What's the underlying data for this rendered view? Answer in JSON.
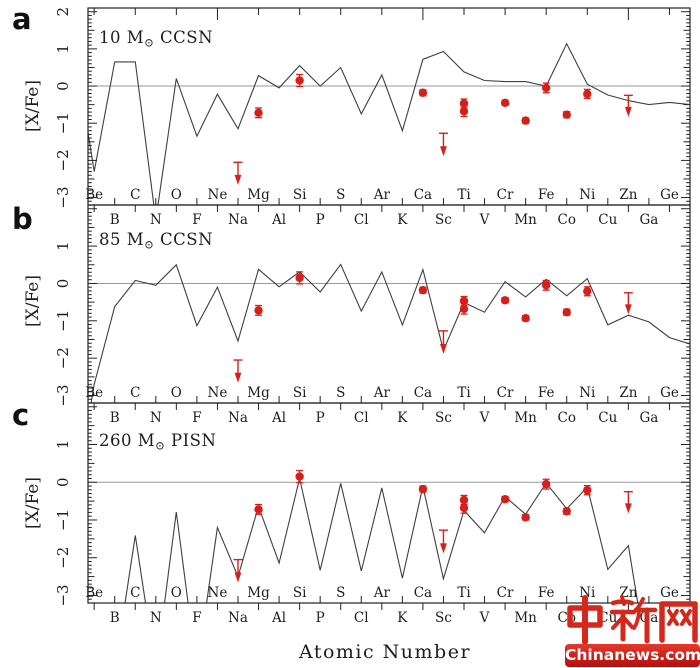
{
  "watermark": {
    "logo_text": "中新网",
    "site_text": "Chinanews.com",
    "logo_color": "#d5281c"
  },
  "chart_data": {
    "type": "line",
    "x": {
      "label": "Atomic Number",
      "z_start": 4,
      "elements": [
        "Be",
        "B",
        "C",
        "N",
        "O",
        "F",
        "Ne",
        "Na",
        "Mg",
        "Al",
        "Si",
        "P",
        "S",
        "Cl",
        "Ar",
        "K",
        "Ca",
        "Sc",
        "Ti",
        "V",
        "Cr",
        "Mn",
        "Fe",
        "Co",
        "Ni",
        "Cu",
        "Zn",
        "Ga",
        "Ge"
      ],
      "xlim": [
        3.7,
        33.0
      ]
    },
    "y": {
      "label": "[X/Fe]",
      "ylim": [
        -3.2,
        2.1
      ],
      "ticks": [
        2,
        1,
        0,
        -1,
        -2,
        -3
      ]
    },
    "colors": {
      "model_line": "#3f3f3f",
      "zero_line": "#9a9a9a",
      "data": "#d71f1a",
      "frame": "#222222"
    },
    "panels": [
      {
        "label": "a",
        "title": "10 M⊙ CCSN",
        "title_parts": {
          "pre": "10 M",
          "sub": "⊙",
          "post": " CCSN"
        },
        "model": [
          [
            3.7,
            -1.25
          ],
          [
            4,
            -2.3
          ],
          [
            5,
            0.65
          ],
          [
            6,
            0.65
          ],
          [
            7,
            -3.6
          ],
          [
            8,
            0.2
          ],
          [
            9,
            -1.35
          ],
          [
            10,
            -0.22
          ],
          [
            11,
            -1.15
          ],
          [
            12,
            0.28
          ],
          [
            13,
            -0.05
          ],
          [
            14,
            0.55
          ],
          [
            15,
            0.0
          ],
          [
            16,
            0.5
          ],
          [
            17,
            -0.75
          ],
          [
            18,
            0.3
          ],
          [
            19,
            -1.2
          ],
          [
            20,
            0.72
          ],
          [
            21,
            0.93
          ],
          [
            22,
            0.38
          ],
          [
            23,
            0.15
          ],
          [
            24,
            0.12
          ],
          [
            25,
            0.12
          ],
          [
            26,
            0.0
          ],
          [
            27,
            1.14
          ],
          [
            28,
            0.05
          ],
          [
            29,
            -0.24
          ],
          [
            30,
            -0.39
          ],
          [
            31,
            -0.5
          ],
          [
            32,
            -0.44
          ],
          [
            33,
            -0.5
          ]
        ]
      },
      {
        "label": "b",
        "title": "85 M⊙ CCSN",
        "title_parts": {
          "pre": "85 M",
          "sub": "⊙",
          "post": " CCSN"
        },
        "model": [
          [
            3.7,
            -3.7
          ],
          [
            4,
            -2.7
          ],
          [
            5,
            -0.62
          ],
          [
            6,
            0.08
          ],
          [
            7,
            -0.05
          ],
          [
            8,
            0.5
          ],
          [
            9,
            -1.13
          ],
          [
            10,
            -0.1
          ],
          [
            11,
            -1.54
          ],
          [
            12,
            0.38
          ],
          [
            13,
            -0.09
          ],
          [
            14,
            0.31
          ],
          [
            15,
            -0.23
          ],
          [
            16,
            0.51
          ],
          [
            17,
            -0.74
          ],
          [
            18,
            0.31
          ],
          [
            19,
            -1.11
          ],
          [
            20,
            0.37
          ],
          [
            21,
            -1.79
          ],
          [
            22,
            -0.51
          ],
          [
            23,
            -0.77
          ],
          [
            24,
            0.05
          ],
          [
            25,
            -0.36
          ],
          [
            26,
            0.11
          ],
          [
            27,
            -0.33
          ],
          [
            28,
            0.13
          ],
          [
            29,
            -1.11
          ],
          [
            30,
            -0.85
          ],
          [
            31,
            -1.03
          ],
          [
            32,
            -1.45
          ],
          [
            33,
            -1.62
          ]
        ]
      },
      {
        "label": "c",
        "title": "260 M⊙ PISN",
        "title_parts": {
          "pre": "260 M",
          "sub": "⊙",
          "post": " PISN"
        },
        "model": [
          [
            3.7,
            -5
          ],
          [
            4,
            -5
          ],
          [
            5,
            -5
          ],
          [
            6,
            -1.41
          ],
          [
            7,
            -5
          ],
          [
            8,
            -0.79
          ],
          [
            9,
            -5
          ],
          [
            10,
            -1.2
          ],
          [
            11,
            -2.5
          ],
          [
            12,
            -0.64
          ],
          [
            13,
            -2.14
          ],
          [
            14,
            0.1
          ],
          [
            15,
            -2.33
          ],
          [
            16,
            -0.03
          ],
          [
            17,
            -2.35
          ],
          [
            18,
            -0.15
          ],
          [
            19,
            -2.54
          ],
          [
            20,
            -0.11
          ],
          [
            21,
            -2.56
          ],
          [
            22,
            -0.75
          ],
          [
            23,
            -1.34
          ],
          [
            24,
            -0.38
          ],
          [
            25,
            -0.85
          ],
          [
            26,
            -0.02
          ],
          [
            27,
            -0.7
          ],
          [
            28,
            -0.13
          ],
          [
            29,
            -2.31
          ],
          [
            30,
            -1.68
          ],
          [
            31,
            -5
          ],
          [
            32,
            -5
          ]
        ]
      }
    ],
    "observations": {
      "points": [
        {
          "element": "Mg",
          "z": 12,
          "value": -0.72,
          "err": 0.13
        },
        {
          "element": "Si",
          "z": 14,
          "value": 0.15,
          "err": 0.16
        },
        {
          "element": "Ca",
          "z": 20,
          "value": -0.18,
          "err": 0.08
        },
        {
          "element": "Ti",
          "z": 22,
          "value": -0.47,
          "err": 0.12
        },
        {
          "element": "Ti",
          "z": 22,
          "value": -0.68,
          "err": 0.14
        },
        {
          "element": "Cr",
          "z": 24,
          "value": -0.45,
          "err": 0.07
        },
        {
          "element": "Mn",
          "z": 25,
          "value": -0.93,
          "err": 0.07
        },
        {
          "element": "Fe",
          "z": 26,
          "value": -0.05,
          "err": 0.13
        },
        {
          "element": "Co",
          "z": 27,
          "value": -0.77,
          "err": 0.08
        },
        {
          "element": "Ni",
          "z": 28,
          "value": -0.21,
          "err": 0.12
        }
      ],
      "upper_limits": [
        {
          "element": "Na",
          "z": 11,
          "value": -2.05,
          "arrow_to": -2.55
        },
        {
          "element": "Sc",
          "z": 21,
          "value": -1.27,
          "arrow_to": -1.78
        },
        {
          "element": "Zn",
          "z": 30,
          "value": -0.25,
          "arrow_to": -0.72
        }
      ]
    }
  }
}
